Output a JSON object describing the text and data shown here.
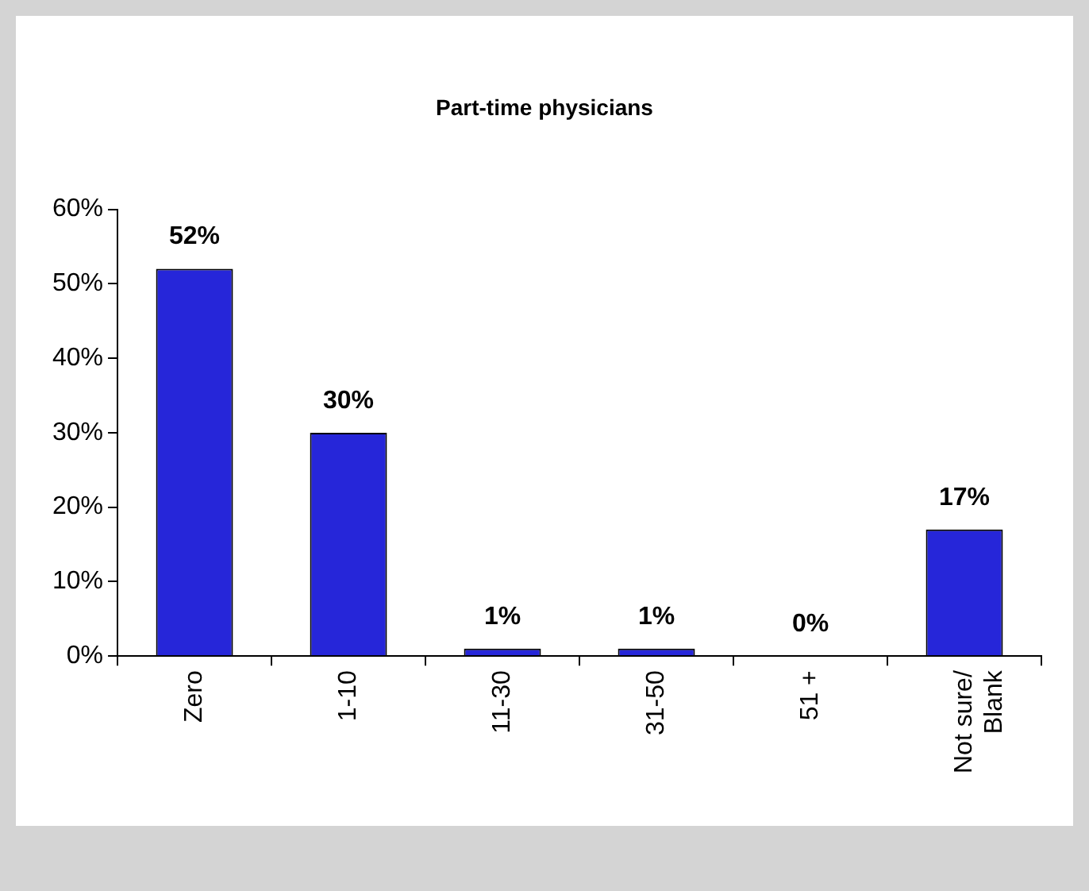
{
  "chart_data": {
    "type": "bar",
    "title": "Part-time physicians",
    "categories": [
      "Zero",
      "1-10",
      "11-30",
      "31-50",
      "51 +",
      "Not sure/\nBlank"
    ],
    "values": [
      52,
      30,
      1,
      1,
      0,
      17
    ],
    "color": "#2626d9",
    "ylim": [
      0,
      60
    ],
    "yticks": [
      {
        "value": 0,
        "label": "0%"
      },
      {
        "value": 10,
        "label": "10%"
      },
      {
        "value": 20,
        "label": "20%"
      },
      {
        "value": 30,
        "label": "30%"
      },
      {
        "value": 40,
        "label": "40%"
      },
      {
        "value": 50,
        "label": "50%"
      },
      {
        "value": 60,
        "label": "60%"
      }
    ],
    "value_labels": [
      "52%",
      "30%",
      "1%",
      "1%",
      "0%",
      "17%"
    ],
    "grid": false,
    "legend": false
  }
}
